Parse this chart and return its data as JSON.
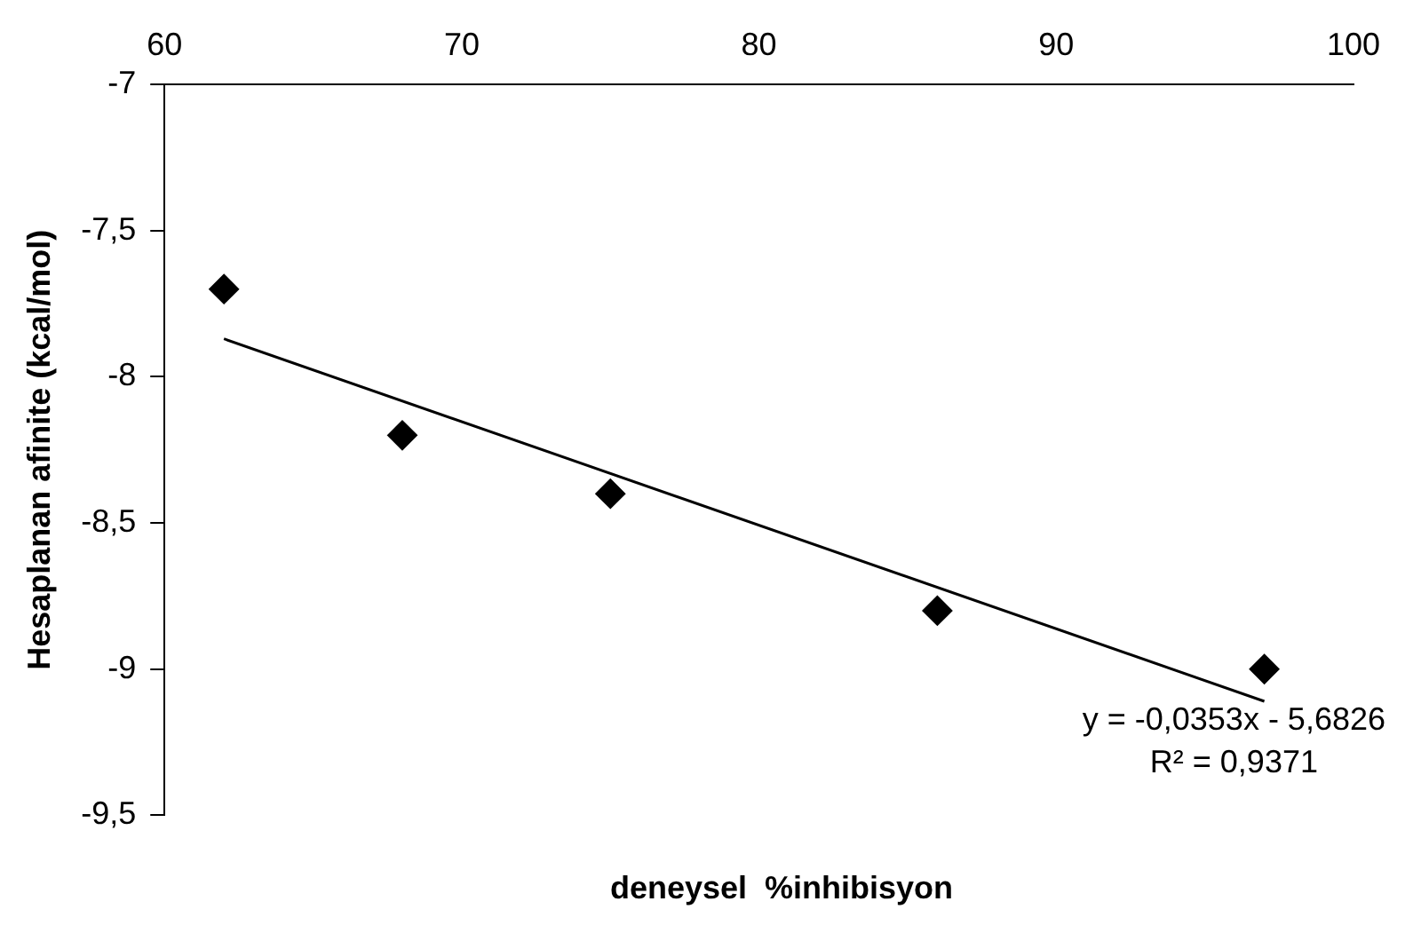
{
  "chart_data": {
    "type": "scatter",
    "xlabel": "deneysel  %inhibisyon",
    "ylabel": "Hesaplanan afinite (kcal/mol)",
    "xlim": [
      60,
      100
    ],
    "xticks": [
      60,
      70,
      80,
      90,
      100
    ],
    "ylim": [
      -9.5,
      -7
    ],
    "yticks": [
      {
        "value": -9.5,
        "label": "-9,5"
      },
      {
        "value": -9,
        "label": "-9"
      },
      {
        "value": -8.5,
        "label": "-8,5"
      },
      {
        "value": -8,
        "label": "-8"
      },
      {
        "value": -7.5,
        "label": "-7,5"
      },
      {
        "value": -7,
        "label": "-7"
      }
    ],
    "grid": false,
    "legend": false,
    "marker": "diamond",
    "series": [
      {
        "type": "scatter",
        "color": "#000000",
        "x": [
          62,
          68,
          75,
          86,
          97
        ],
        "values": [
          -7.7,
          -8.2,
          -8.4,
          -8.8,
          -9.0
        ]
      },
      {
        "type": "line",
        "color": "#000000",
        "x": [
          62,
          97
        ],
        "values": [
          -7.87,
          -9.11
        ],
        "line_style": "solid",
        "marker": "none"
      }
    ],
    "annotations": [
      "y = -0,0353x - 5,6826",
      "R² = 0,9371"
    ]
  }
}
